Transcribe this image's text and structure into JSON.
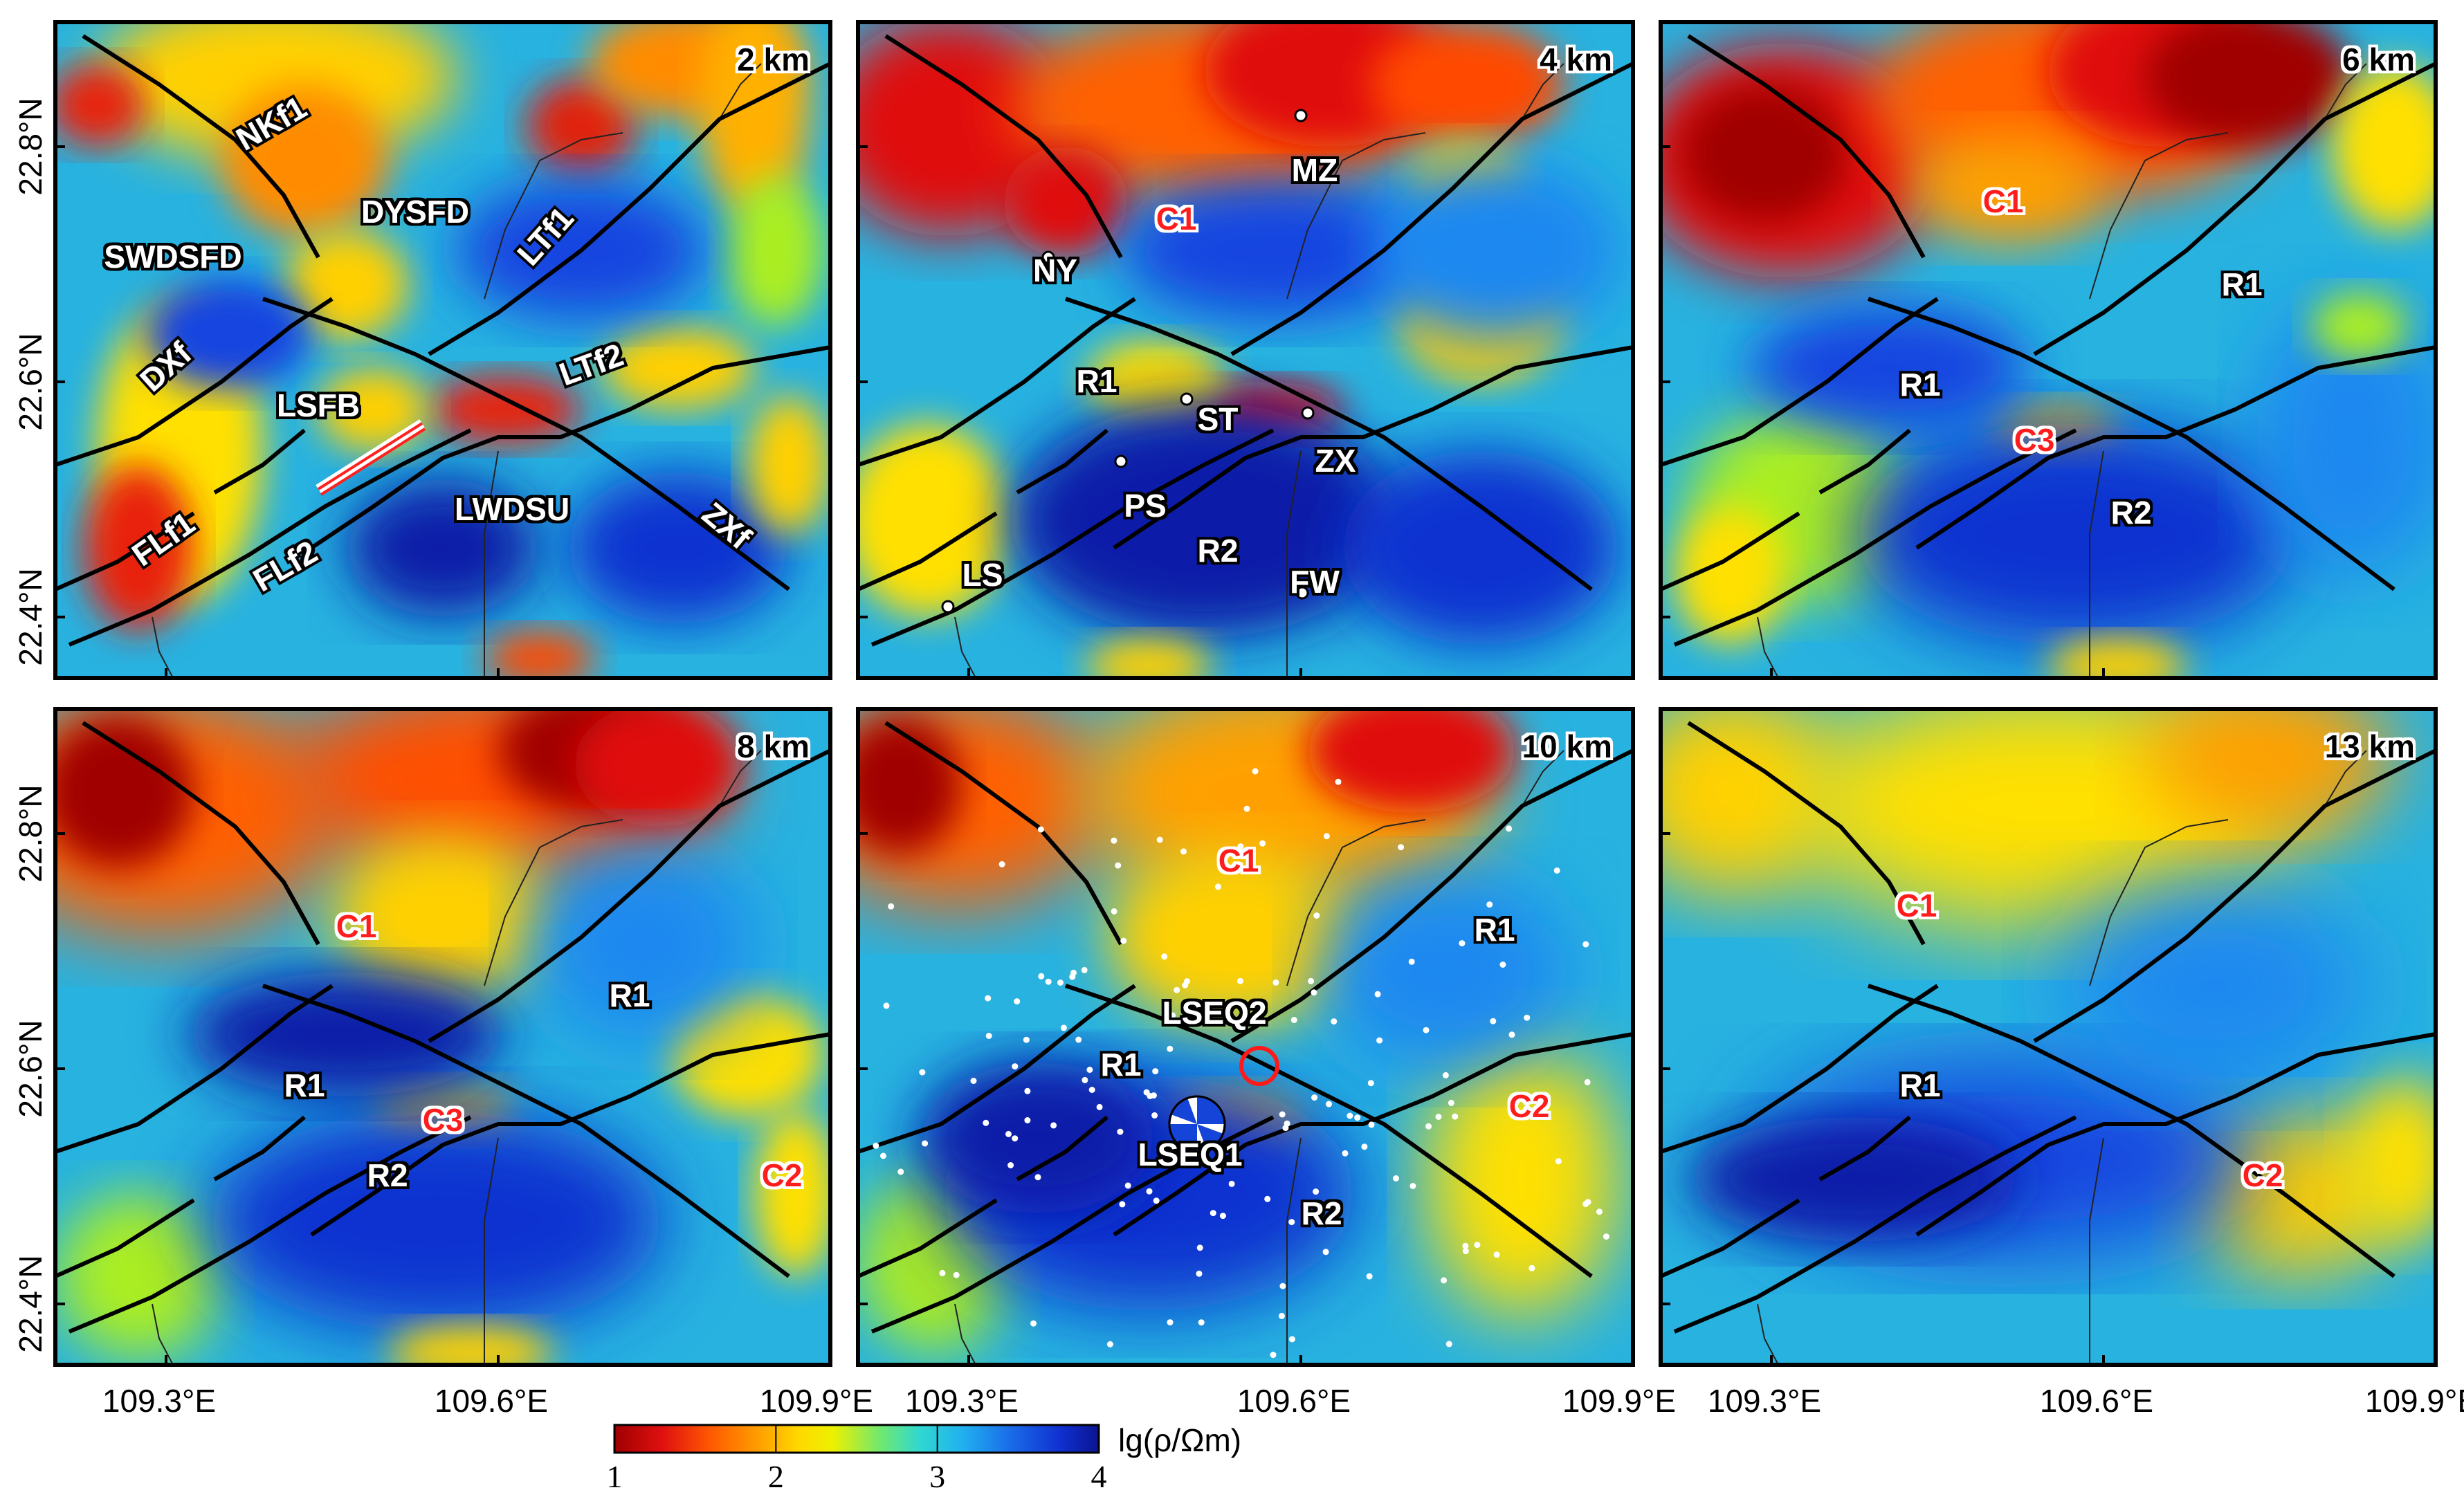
{
  "colors": {
    "frame": "#000000",
    "fault": "#000000",
    "minor_fault": "#222222",
    "label_white": "#ffffff",
    "label_red": "#ff1a1a",
    "halo": "#000000",
    "rupture": "#ff2020",
    "seismic_dot": "#ffffff",
    "epicenter_circle": "#ff1a1a",
    "colormap": [
      "#a00000",
      "#e01010",
      "#ff4a00",
      "#ff8c00",
      "#ffd000",
      "#f5f000",
      "#aaee22",
      "#40e0b0",
      "#20c8e8",
      "#1e88f0",
      "#1444e0",
      "#0a1aa8"
    ]
  },
  "axes": {
    "y_ticks": [
      "22.4°N",
      "22.6°N",
      "22.8°N"
    ],
    "x_ticks": [
      "109.3°E",
      "109.6°E",
      "109.9°E"
    ]
  },
  "colorbar": {
    "ticks": [
      "1",
      "2",
      "3",
      "4"
    ],
    "label": "lg(ρ/Ωm)",
    "range": [
      1,
      4
    ]
  },
  "panels": [
    {
      "depth": "2 km",
      "labels": [
        {
          "text": "NKf1",
          "color": "white"
        },
        {
          "text": "DYSFD",
          "color": "white"
        },
        {
          "text": "SWDSFD",
          "color": "white"
        },
        {
          "text": "LTf1",
          "color": "white"
        },
        {
          "text": "DXf",
          "color": "white"
        },
        {
          "text": "LSFB",
          "color": "white"
        },
        {
          "text": "LTf2",
          "color": "white"
        },
        {
          "text": "FLf1",
          "color": "white"
        },
        {
          "text": "LWDSU",
          "color": "white"
        },
        {
          "text": "FLf2",
          "color": "white"
        },
        {
          "text": "ZXf",
          "color": "white"
        }
      ]
    },
    {
      "depth": "4 km",
      "labels": [
        {
          "text": "MZ",
          "color": "white"
        },
        {
          "text": "C1",
          "color": "red"
        },
        {
          "text": "NY",
          "color": "white"
        },
        {
          "text": "R1",
          "color": "white"
        },
        {
          "text": "ST",
          "color": "white"
        },
        {
          "text": "ZX",
          "color": "white"
        },
        {
          "text": "PS",
          "color": "white"
        },
        {
          "text": "R2",
          "color": "white"
        },
        {
          "text": "LS",
          "color": "white"
        },
        {
          "text": "FW",
          "color": "white"
        }
      ]
    },
    {
      "depth": "6 km",
      "labels": [
        {
          "text": "C1",
          "color": "red"
        },
        {
          "text": "R1",
          "color": "white"
        },
        {
          "text": "R1",
          "color": "white"
        },
        {
          "text": "C3",
          "color": "red"
        },
        {
          "text": "R2",
          "color": "white"
        }
      ]
    },
    {
      "depth": "8 km",
      "labels": [
        {
          "text": "C1",
          "color": "red"
        },
        {
          "text": "R1",
          "color": "white"
        },
        {
          "text": "R1",
          "color": "white"
        },
        {
          "text": "C3",
          "color": "red"
        },
        {
          "text": "R2",
          "color": "white"
        },
        {
          "text": "C2",
          "color": "red"
        }
      ]
    },
    {
      "depth": "10 km",
      "labels": [
        {
          "text": "C1",
          "color": "red"
        },
        {
          "text": "R1",
          "color": "white"
        },
        {
          "text": "LSEQ2",
          "color": "white"
        },
        {
          "text": "R1",
          "color": "white"
        },
        {
          "text": "C2",
          "color": "red"
        },
        {
          "text": "LSEQ1",
          "color": "white"
        },
        {
          "text": "R2",
          "color": "white"
        }
      ]
    },
    {
      "depth": "13 km",
      "labels": [
        {
          "text": "C1",
          "color": "red"
        },
        {
          "text": "R1",
          "color": "white"
        },
        {
          "text": "C2",
          "color": "red"
        }
      ]
    }
  ]
}
